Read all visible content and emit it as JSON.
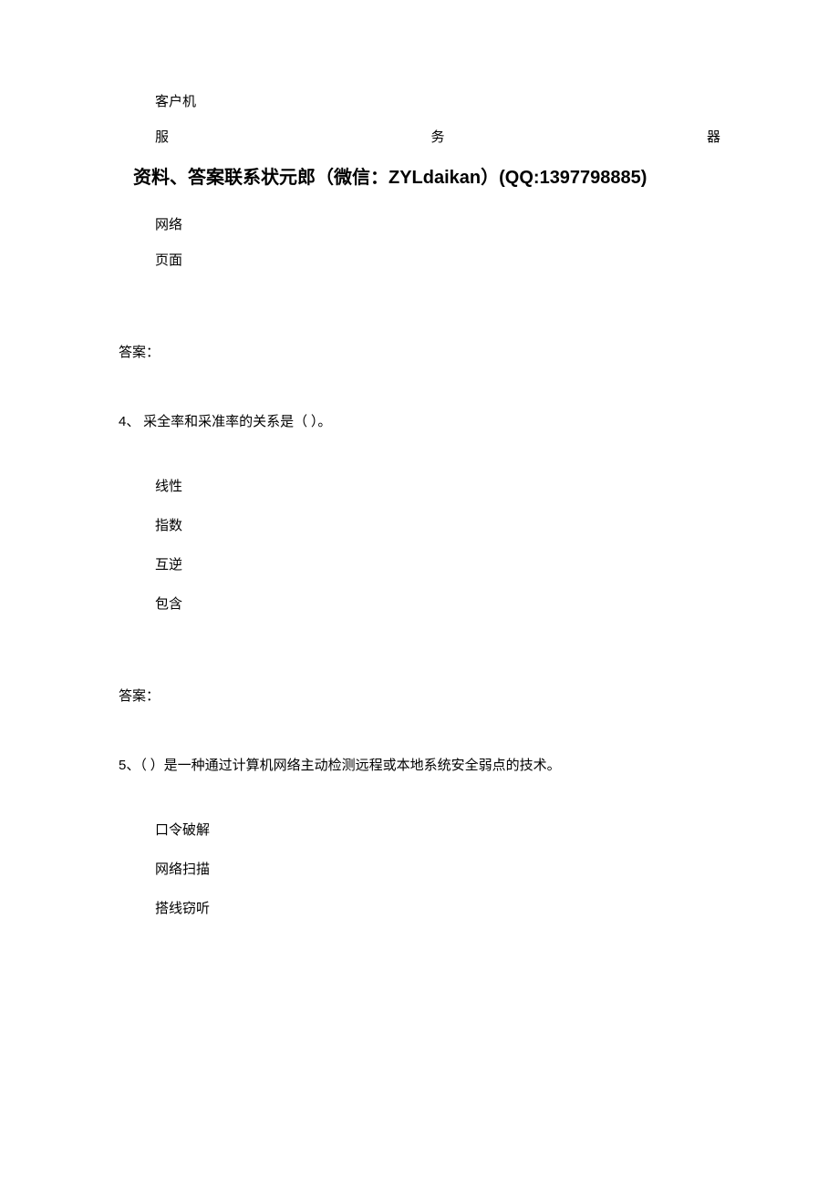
{
  "q3_options": {
    "opt1": "客户机",
    "justified": {
      "c1": "服",
      "c2": "务",
      "c3": "器"
    },
    "opt3": "网络",
    "opt4": "页面"
  },
  "heading": "资料、答案联系状元郎（微信：ZYLdaikan）(QQ:1397798885)",
  "answer_label": "答案：",
  "q4": {
    "num": "4、",
    "text": " 采全率和采准率的关系是（ ）。",
    "options": {
      "a": "线性",
      "b": "指数",
      "c": "互逆",
      "d": "包含"
    }
  },
  "q5": {
    "num": "5、",
    "text": "（ ）是一种通过计算机网络主动检测远程或本地系统安全弱点的技术。",
    "options": {
      "a": "口令破解",
      "b": "网络扫描",
      "c": "搭线窃听"
    }
  }
}
